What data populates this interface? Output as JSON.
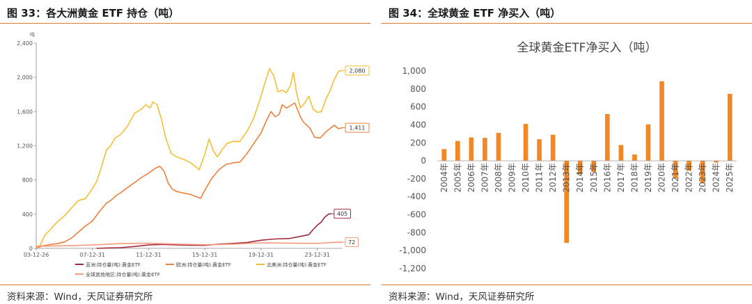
{
  "panels": [
    {
      "title": "图 33：各大洲黄金 ETF 持仓（吨）",
      "source": "资料来源：Wind，天风证券研究所"
    },
    {
      "title": "图 34：全球黄金 ETF 净买入（吨）",
      "source": "资料来源：Wind，天风证券研究所"
    }
  ],
  "chart_data": [
    {
      "type": "line",
      "title": "",
      "ylabel": "吨",
      "ylim": [
        0,
        2400
      ],
      "y_ticks": [
        "0",
        "400",
        "800",
        "1,200",
        "1,600",
        "2,000",
        "2,400"
      ],
      "x_ticks": [
        "03-12-26",
        "07-12-31",
        "11-12-31",
        "15-12-31",
        "19-12-31",
        "23-12-31"
      ],
      "x_tick_years": [
        2004.0,
        2008.0,
        2012.0,
        2016.0,
        2020.0,
        2024.0
      ],
      "grid": false,
      "legend_position": "bottom",
      "series": [
        {
          "name": "亚洲:持仓量(吨):黄金ETF",
          "color": "#a0283c",
          "end_label": "405",
          "points": [
            [
              2008.3,
              0
            ],
            [
              2009,
              4
            ],
            [
              2010,
              8
            ],
            [
              2011,
              22
            ],
            [
              2012,
              40
            ],
            [
              2013,
              46
            ],
            [
              2014,
              40
            ],
            [
              2015,
              36
            ],
            [
              2016,
              35
            ],
            [
              2017,
              50
            ],
            [
              2018,
              58
            ],
            [
              2019,
              68
            ],
            [
              2020,
              95
            ],
            [
              2021,
              110
            ],
            [
              2022,
              115
            ],
            [
              2022.8,
              140
            ],
            [
              2023.4,
              160
            ],
            [
              2023.7,
              220
            ],
            [
              2024.0,
              270
            ],
            [
              2024.3,
              310
            ],
            [
              2024.5,
              360
            ],
            [
              2024.8,
              400
            ],
            [
              2025.0,
              405
            ]
          ]
        },
        {
          "name": "欧洲:持仓量(吨):黄金ETF",
          "color": "#ee7f3a",
          "end_label": "1,411",
          "points": [
            [
              2004,
              3
            ],
            [
              2004.5,
              30
            ],
            [
              2005,
              45
            ],
            [
              2005.5,
              55
            ],
            [
              2006,
              75
            ],
            [
              2006.5,
              120
            ],
            [
              2007,
              190
            ],
            [
              2007.5,
              260
            ],
            [
              2008,
              320
            ],
            [
              2008.5,
              430
            ],
            [
              2009.0,
              530
            ],
            [
              2009.3,
              560
            ],
            [
              2009.7,
              620
            ],
            [
              2010.0,
              650
            ],
            [
              2010.5,
              710
            ],
            [
              2011.0,
              770
            ],
            [
              2011.5,
              830
            ],
            [
              2012.0,
              880
            ],
            [
              2012.5,
              940
            ],
            [
              2012.8,
              960
            ],
            [
              2013.1,
              900
            ],
            [
              2013.4,
              760
            ],
            [
              2013.7,
              690
            ],
            [
              2014,
              665
            ],
            [
              2014.5,
              645
            ],
            [
              2015,
              630
            ],
            [
              2015.7,
              585
            ],
            [
              2016,
              680
            ],
            [
              2016.5,
              820
            ],
            [
              2017,
              920
            ],
            [
              2017.5,
              980
            ],
            [
              2018,
              1000
            ],
            [
              2018.5,
              1010
            ],
            [
              2019,
              1110
            ],
            [
              2019.5,
              1230
            ],
            [
              2020.0,
              1350
            ],
            [
              2020.4,
              1500
            ],
            [
              2020.7,
              1600
            ],
            [
              2021,
              1540
            ],
            [
              2021.3,
              1570
            ],
            [
              2021.5,
              1680
            ],
            [
              2021.8,
              1640
            ],
            [
              2022.0,
              1660
            ],
            [
              2022.4,
              1700
            ],
            [
              2022.8,
              1540
            ],
            [
              2023.0,
              1480
            ],
            [
              2023.5,
              1400
            ],
            [
              2023.8,
              1300
            ],
            [
              2024.2,
              1290
            ],
            [
              2024.6,
              1360
            ],
            [
              2024.9,
              1400
            ],
            [
              2025.2,
              1440
            ],
            [
              2025.5,
              1400
            ],
            [
              2025.8,
              1411
            ]
          ]
        },
        {
          "name": "北美洲:持仓量(吨):黄金ETF",
          "color": "#f5bf33",
          "end_label": "2,080",
          "points": [
            [
              2004,
              5
            ],
            [
              2004.3,
              40
            ],
            [
              2004.6,
              150
            ],
            [
              2005,
              220
            ],
            [
              2005.5,
              310
            ],
            [
              2006,
              380
            ],
            [
              2006.5,
              470
            ],
            [
              2007,
              560
            ],
            [
              2007.5,
              580
            ],
            [
              2008,
              700
            ],
            [
              2008.3,
              780
            ],
            [
              2008.6,
              930
            ],
            [
              2009.0,
              1150
            ],
            [
              2009.3,
              1200
            ],
            [
              2009.6,
              1290
            ],
            [
              2010,
              1330
            ],
            [
              2010.5,
              1430
            ],
            [
              2011.0,
              1580
            ],
            [
              2011.5,
              1630
            ],
            [
              2011.8,
              1680
            ],
            [
              2012.1,
              1640
            ],
            [
              2012.3,
              1710
            ],
            [
              2012.6,
              1680
            ],
            [
              2012.9,
              1520
            ],
            [
              2013.2,
              1300
            ],
            [
              2013.6,
              1110
            ],
            [
              2014,
              1070
            ],
            [
              2014.5,
              1040
            ],
            [
              2015,
              1000
            ],
            [
              2015.6,
              920
            ],
            [
              2016.0,
              1100
            ],
            [
              2016.3,
              1280
            ],
            [
              2016.6,
              1140
            ],
            [
              2016.9,
              1070
            ],
            [
              2017.2,
              1150
            ],
            [
              2017.6,
              1230
            ],
            [
              2018,
              1250
            ],
            [
              2018.5,
              1250
            ],
            [
              2019,
              1370
            ],
            [
              2019.5,
              1530
            ],
            [
              2020.0,
              1780
            ],
            [
              2020.3,
              1950
            ],
            [
              2020.6,
              2100
            ],
            [
              2020.9,
              2020
            ],
            [
              2021.2,
              1830
            ],
            [
              2021.5,
              1850
            ],
            [
              2021.8,
              1820
            ],
            [
              2022.1,
              1910
            ],
            [
              2022.3,
              2060
            ],
            [
              2022.5,
              1840
            ],
            [
              2022.8,
              1640
            ],
            [
              2023.1,
              1700
            ],
            [
              2023.4,
              1780
            ],
            [
              2023.7,
              1630
            ],
            [
              2024.0,
              1590
            ],
            [
              2024.3,
              1600
            ],
            [
              2024.6,
              1740
            ],
            [
              2024.9,
              1840
            ],
            [
              2025.2,
              1970
            ],
            [
              2025.5,
              2070
            ],
            [
              2025.8,
              2080
            ]
          ]
        },
        {
          "name": "全球其他地区:持仓量(吨):黄金ETF",
          "color": "#f59a7c",
          "end_label": "72",
          "points": [
            [
              2004,
              25
            ],
            [
              2006,
              30
            ],
            [
              2008,
              40
            ],
            [
              2010,
              55
            ],
            [
              2012,
              60
            ],
            [
              2014,
              50
            ],
            [
              2016,
              42
            ],
            [
              2018,
              50
            ],
            [
              2020,
              65
            ],
            [
              2022,
              60
            ],
            [
              2024,
              58
            ],
            [
              2025.0,
              68
            ],
            [
              2025.8,
              72
            ]
          ]
        }
      ]
    },
    {
      "type": "bar",
      "title": "全球黄金ETF净买入（吨）",
      "categories": [
        "2004年",
        "2005年",
        "2006年",
        "2007年",
        "2008年",
        "2009年",
        "2010年",
        "2011年",
        "2012年",
        "2013年",
        "2014年",
        "2015年",
        "2016年",
        "2017年",
        "2018年",
        "2019年",
        "2020年",
        "2021年",
        "2022年",
        "2023年",
        "2024年",
        "2025年"
      ],
      "values": [
        130,
        220,
        260,
        255,
        310,
        0,
        410,
        240,
        290,
        -915,
        -150,
        -125,
        520,
        175,
        70,
        405,
        885,
        -195,
        -110,
        -245,
        -20,
        745
      ],
      "ylim": [
        -1200,
        1000
      ],
      "y_ticks": [
        "1,000",
        "800",
        "600",
        "400",
        "200",
        "0",
        "-200",
        "-400",
        "-600",
        "-800",
        "-1,000",
        "-1,200"
      ],
      "color": "#f28724",
      "grid": false
    }
  ]
}
